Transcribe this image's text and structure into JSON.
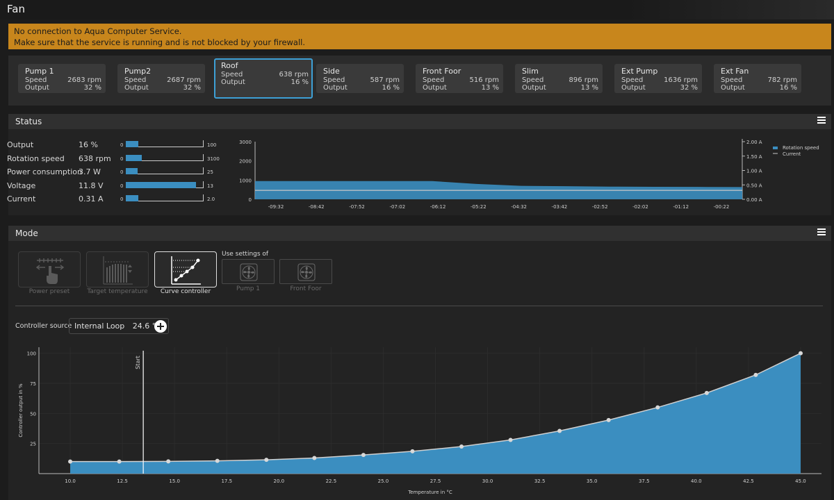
{
  "window": {
    "title": "Fan"
  },
  "warning": {
    "line1": "No connection to Aqua Computer Service.",
    "line2": "Make sure that the service is running and is not blocked by your firewall."
  },
  "fans": [
    {
      "name": "Pump 1",
      "speed_label": "Speed",
      "speed": "2683 rpm",
      "output_label": "Output",
      "output": "32 %"
    },
    {
      "name": "Pump2",
      "speed_label": "Speed",
      "speed": "2687 rpm",
      "output_label": "Output",
      "output": "32 %"
    },
    {
      "name": "Roof",
      "speed_label": "Speed",
      "speed": "638 rpm",
      "output_label": "Output",
      "output": "16 %"
    },
    {
      "name": "Side",
      "speed_label": "Speed",
      "speed": "587 rpm",
      "output_label": "Output",
      "output": "16 %"
    },
    {
      "name": "Front Foor",
      "speed_label": "Speed",
      "speed": "516 rpm",
      "output_label": "Output",
      "output": "13 %"
    },
    {
      "name": "Slim",
      "speed_label": "Speed",
      "speed": "896 rpm",
      "output_label": "Output",
      "output": "13 %"
    },
    {
      "name": "Ext Pump",
      "speed_label": "Speed",
      "speed": "1636 rpm",
      "output_label": "Output",
      "output": "32 %"
    },
    {
      "name": "Ext Fan",
      "speed_label": "Speed",
      "speed": "782 rpm",
      "output_label": "Output",
      "output": "16 %"
    }
  ],
  "selected_fan": "Roof",
  "status": {
    "title": "Status",
    "rows": [
      {
        "label": "Output",
        "value": "16 %",
        "min": "0",
        "max": "100",
        "fill": 0.16
      },
      {
        "label": "Rotation speed",
        "value": "638 rpm",
        "min": "0",
        "max": "3100",
        "fill": 0.21
      },
      {
        "label": "Power consumption",
        "value": "3.7 W",
        "min": "0",
        "max": "25",
        "fill": 0.15
      },
      {
        "label": "Voltage",
        "value": "11.8 V",
        "min": "0",
        "max": "13",
        "fill": 0.91
      },
      {
        "label": "Current",
        "value": "0.31 A",
        "min": "0",
        "max": "2.0",
        "fill": 0.16
      }
    ]
  },
  "mode": {
    "title": "Mode",
    "buttons": [
      {
        "label": "Power preset",
        "active": false
      },
      {
        "label": "Target temperature",
        "active": false
      },
      {
        "label": "Curve controller",
        "active": true
      }
    ],
    "use_settings_label": "Use settings of",
    "use_settings": [
      "Pump 1",
      "Front Foor"
    ],
    "controller_source_label": "Controller source",
    "controller_source": "Internal Loop",
    "controller_source_value": "24.6 °C"
  },
  "chart_data": [
    {
      "type": "area",
      "x": [
        "-09:32",
        "-08:42",
        "-07:52",
        "-07:02",
        "-06:12",
        "-05:22",
        "-04:32",
        "-03:42",
        "-02:52",
        "-02:02",
        "-01:12",
        "-00:22"
      ],
      "ylim": [
        0,
        3000
      ],
      "y_ticks": [
        "0",
        "1000",
        "2000",
        "3000"
      ],
      "y2lim": [
        0,
        2.0
      ],
      "y2_ticks": [
        "0.00 A",
        "0.50 A",
        "1.00 A",
        "1.50 A",
        "2.00 A"
      ],
      "legend_position": "top-right",
      "series": [
        {
          "name": "Rotation speed",
          "color": "#3b8ec0",
          "axis": "left",
          "values": [
            950,
            950,
            950,
            950,
            950,
            800,
            700,
            680,
            660,
            650,
            645,
            638
          ]
        },
        {
          "name": "Current",
          "color": "#c8c8c8",
          "axis": "right",
          "values": [
            0.31,
            0.31,
            0.31,
            0.31,
            0.31,
            0.31,
            0.31,
            0.31,
            0.31,
            0.31,
            0.31,
            0.31
          ]
        }
      ]
    },
    {
      "type": "area",
      "xlabel": "Temperature in °C",
      "ylabel": "Controller output in %",
      "xlim": [
        8.5,
        46
      ],
      "ylim": [
        0,
        105
      ],
      "x_ticks": [
        "10.0",
        "12.5",
        "15.0",
        "17.5",
        "20.0",
        "22.5",
        "25.0",
        "27.5",
        "30.0",
        "32.5",
        "35.0",
        "37.5",
        "40.0",
        "42.5",
        "45.0"
      ],
      "y_ticks": [
        "25",
        "50",
        "75",
        "100"
      ],
      "start_marker": {
        "label": "Start",
        "x": 13.5
      },
      "color": "#3b8ec0",
      "points": [
        [
          10.0,
          10
        ],
        [
          12.35,
          10
        ],
        [
          14.7,
          10.2
        ],
        [
          17.05,
          10.6
        ],
        [
          19.4,
          11.5
        ],
        [
          21.7,
          13
        ],
        [
          24.05,
          15.5
        ],
        [
          26.4,
          18.5
        ],
        [
          28.75,
          22.5
        ],
        [
          31.1,
          28
        ],
        [
          33.45,
          35.5
        ],
        [
          35.8,
          44.5
        ],
        [
          38.15,
          55
        ],
        [
          40.5,
          67
        ],
        [
          42.85,
          82
        ],
        [
          45.0,
          100
        ]
      ]
    }
  ]
}
